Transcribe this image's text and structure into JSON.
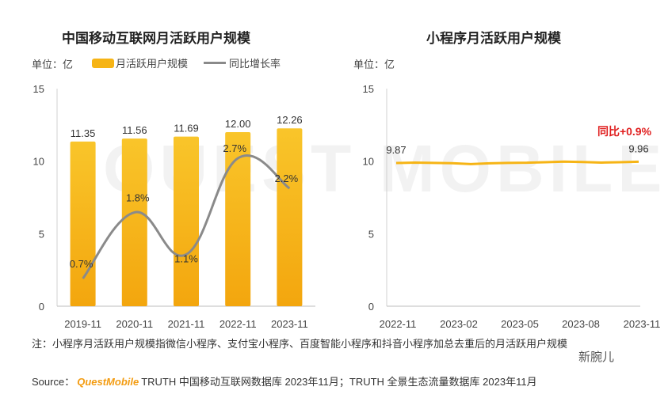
{
  "chart_data": [
    {
      "type": "bar",
      "title": "中国移动互联网月活跃用户规模",
      "unit": "单位：亿",
      "categories": [
        "2019-11",
        "2020-11",
        "2021-11",
        "2022-11",
        "2023-11"
      ],
      "series": [
        {
          "name": "月活跃用户规模",
          "kind": "bar",
          "values": [
            11.35,
            11.56,
            11.69,
            12.0,
            12.26
          ],
          "color": "#f6b415",
          "labels": [
            "11.35",
            "11.56",
            "11.69",
            "12.00",
            "12.26"
          ]
        },
        {
          "name": "同比增长率",
          "kind": "line",
          "values": [
            0.7,
            1.8,
            1.1,
            2.7,
            2.2
          ],
          "color": "#8a8a8a",
          "labels": [
            "0.7%",
            "1.8%",
            "1.1%",
            "2.7%",
            "2.2%"
          ]
        }
      ],
      "ylim": [
        0,
        15
      ],
      "yticks": [
        "0",
        "5",
        "10",
        "15"
      ]
    },
    {
      "type": "line",
      "title": "小程序月活跃用户规模",
      "unit": "单位：亿",
      "x_labels": [
        "2022-11",
        "2023-02",
        "2023-05",
        "2023-08",
        "2023-11"
      ],
      "values": [
        9.87,
        9.9,
        9.88,
        9.86,
        9.8,
        9.85,
        9.88,
        9.89,
        9.93,
        9.97,
        9.94,
        9.9,
        9.93,
        9.96
      ],
      "start_label": "9.87",
      "end_label": "9.96",
      "annotation": "同比+0.9%",
      "annotation_color": "#e02020",
      "color": "#f6b415",
      "ylim": [
        0,
        15
      ],
      "yticks": [
        "0",
        "5",
        "10",
        "15"
      ]
    }
  ],
  "legend": {
    "bar_label": "月活跃用户规模",
    "line_label": "同比增长率"
  },
  "note": "注：小程序月活跃用户规模指微信小程序、支付宝小程序、百度智能小程序和抖音小程序加总去重后的月活跃用户规模",
  "source": {
    "prefix": "Source：",
    "brand": "QuestMobile",
    "text": "TRUTH 中国移动互联网数据库 2023年11月；TRUTH 全景生态流量数据库 2023年11月"
  },
  "watermark": "新腕儿",
  "bg_watermark": "QUEST MOBILE"
}
